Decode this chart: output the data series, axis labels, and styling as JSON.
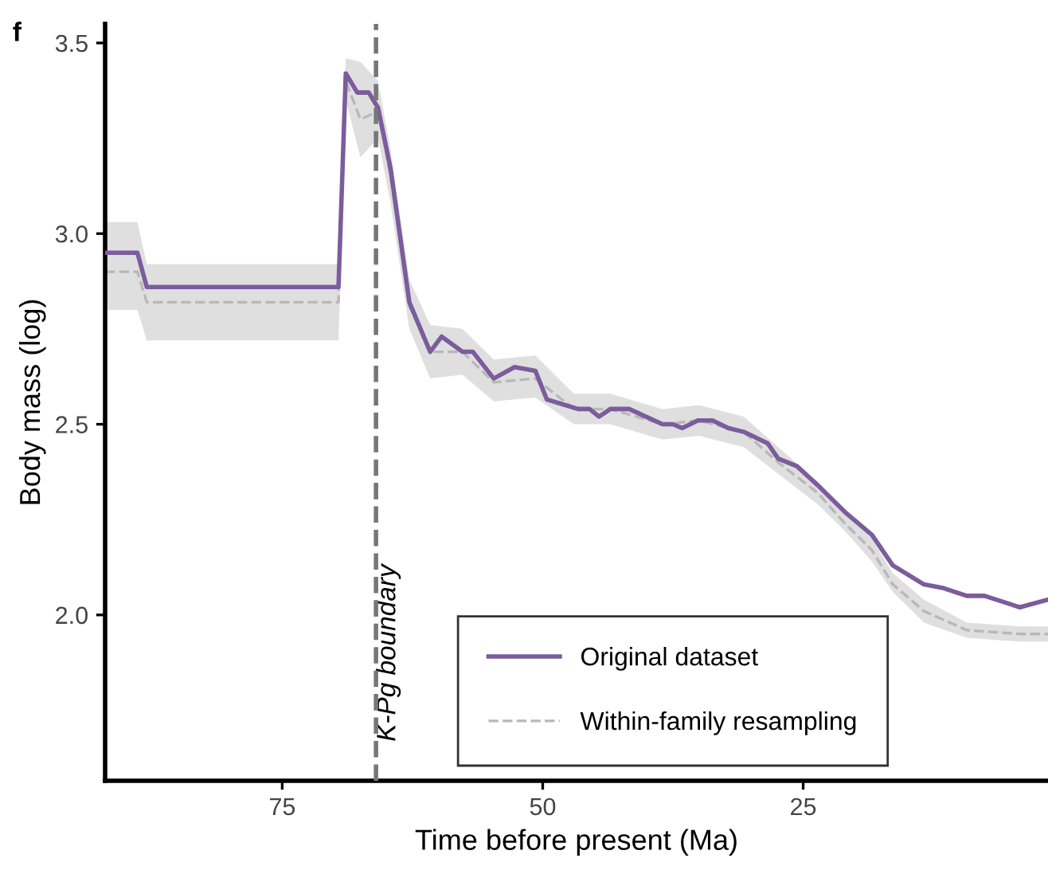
{
  "chart_data": {
    "type": "line",
    "xlabel": "Time before present (Ma)",
    "ylabel": "Body mass (log)",
    "annotations": [
      "f"
    ],
    "xlim": [
      92,
      1.5
    ],
    "xticks": [
      75,
      50,
      25
    ],
    "ylim": [
      1.565,
      3.55
    ],
    "yticks": [
      {
        "value": 2,
        "label": "2.0"
      },
      {
        "value": 2.5,
        "label": "2.5"
      },
      {
        "value": 3,
        "label": "3.0"
      },
      {
        "value": 3.5,
        "label": "3.5"
      }
    ],
    "grid": false,
    "legend": "bottom right",
    "marker": "none",
    "ref_lines": [
      {
        "axis": "x",
        "value": 66,
        "label": "K-Pg boundary",
        "color": "#777777",
        "line_style": "dashed"
      }
    ],
    "series": [
      {
        "name": "Within-family resampling",
        "color": "#b8b8b8",
        "line_style": "dashed",
        "x": [
          92,
          88.9,
          88,
          69.6,
          68.9,
          67.5,
          65.8,
          64.6,
          62.8,
          60.8,
          57.7,
          54.7,
          50.7,
          47,
          43.5,
          38.5,
          35,
          30.7,
          27.4,
          23.6,
          21,
          18.4,
          16.4,
          13.4,
          9.3,
          4.2,
          1.5
        ],
        "values": [
          2.9,
          2.9,
          2.82,
          2.82,
          3.4,
          3.3,
          3.32,
          3.15,
          2.81,
          2.69,
          2.69,
          2.61,
          2.62,
          2.54,
          2.54,
          2.5,
          2.51,
          2.48,
          2.4,
          2.32,
          2.24,
          2.17,
          2.08,
          2.01,
          1.96,
          1.95,
          1.95
        ],
        "lower": [
          2.8,
          2.8,
          2.72,
          2.72,
          3.35,
          3.2,
          3.25,
          3.08,
          2.75,
          2.62,
          2.63,
          2.56,
          2.57,
          2.5,
          2.5,
          2.46,
          2.47,
          2.44,
          2.37,
          2.29,
          2.22,
          2.14,
          2.06,
          1.98,
          1.94,
          1.93,
          1.93
        ],
        "upper": [
          3.03,
          3.03,
          2.92,
          2.92,
          3.46,
          3.45,
          3.4,
          3.22,
          2.88,
          2.76,
          2.75,
          2.67,
          2.68,
          2.58,
          2.58,
          2.54,
          2.55,
          2.52,
          2.44,
          2.35,
          2.27,
          2.2,
          2.11,
          2.04,
          1.98,
          1.97,
          1.97
        ]
      },
      {
        "name": "Original dataset",
        "color": "#7b5c9c",
        "line_style": "solid",
        "x": [
          92,
          88.9,
          88,
          69.6,
          68.9,
          67.8,
          66.7,
          65.8,
          64.6,
          62.8,
          60.8,
          59.7,
          57.7,
          56.7,
          54.7,
          52.7,
          50.7,
          49.6,
          46.6,
          45.5,
          44.6,
          43.5,
          41.7,
          38.5,
          37.5,
          36.6,
          35.1,
          33.7,
          32.2,
          30.7,
          28.4,
          27.4,
          25.6,
          23.6,
          21,
          18.4,
          16.4,
          13.4,
          11.5,
          9.3,
          7.6,
          4.2,
          1.5
        ],
        "values": [
          2.95,
          2.95,
          2.86,
          2.86,
          3.42,
          3.37,
          3.37,
          3.33,
          3.17,
          2.82,
          2.69,
          2.73,
          2.69,
          2.69,
          2.62,
          2.65,
          2.64,
          2.565,
          2.54,
          2.54,
          2.52,
          2.54,
          2.54,
          2.5,
          2.5,
          2.49,
          2.51,
          2.51,
          2.49,
          2.48,
          2.45,
          2.41,
          2.39,
          2.34,
          2.27,
          2.21,
          2.13,
          2.08,
          2.07,
          2.05,
          2.05,
          2.02,
          2.04
        ]
      }
    ]
  }
}
